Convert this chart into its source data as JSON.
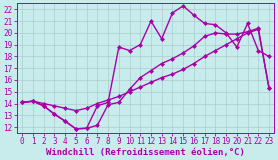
{
  "xlabel": "Windchill (Refroidissement éolien,°C)",
  "bg_color": "#c8ecec",
  "grid_color": "#aacccc",
  "line_color": "#aa00aa",
  "xlim": [
    -0.5,
    23.5
  ],
  "ylim": [
    11.5,
    22.5
  ],
  "xticks": [
    0,
    1,
    2,
    3,
    4,
    5,
    6,
    7,
    8,
    9,
    10,
    11,
    12,
    13,
    14,
    15,
    16,
    17,
    18,
    19,
    20,
    21,
    22,
    23
  ],
  "yticks": [
    12,
    13,
    14,
    15,
    16,
    17,
    18,
    19,
    20,
    21,
    22
  ],
  "line1_x": [
    0,
    1,
    2,
    3,
    4,
    5,
    6,
    7,
    8,
    9,
    10,
    11,
    12,
    13,
    14,
    15,
    16,
    17,
    18,
    19,
    20,
    21,
    22,
    23
  ],
  "line1_y": [
    14.1,
    14.2,
    13.8,
    13.1,
    12.5,
    11.85,
    11.9,
    13.8,
    14.1,
    18.8,
    18.5,
    19.0,
    21.0,
    19.5,
    21.7,
    22.3,
    21.5,
    20.8,
    20.7,
    20.0,
    18.8,
    20.8,
    18.5,
    18.0
  ],
  "line2_x": [
    0,
    1,
    2,
    3,
    4,
    5,
    6,
    7,
    8,
    9,
    10,
    11,
    12,
    13,
    14,
    15,
    16,
    17,
    18,
    19,
    20,
    21,
    22,
    23
  ],
  "line2_y": [
    14.1,
    14.2,
    14.0,
    13.8,
    13.6,
    13.4,
    13.6,
    14.0,
    14.3,
    14.6,
    15.0,
    15.4,
    15.8,
    16.2,
    16.5,
    16.9,
    17.4,
    18.0,
    18.5,
    19.0,
    19.5,
    20.0,
    20.3,
    15.3
  ],
  "line3_x": [
    0,
    1,
    2,
    3,
    4,
    5,
    6,
    7,
    8,
    9,
    10,
    11,
    12,
    13,
    14,
    15,
    16,
    17,
    18,
    19,
    20,
    21,
    22,
    23
  ],
  "line3_y": [
    14.1,
    14.2,
    13.8,
    13.1,
    12.5,
    11.85,
    11.9,
    12.15,
    13.9,
    14.1,
    15.2,
    16.2,
    16.8,
    17.4,
    17.8,
    18.3,
    18.9,
    19.7,
    20.0,
    19.9,
    19.9,
    20.1,
    20.4,
    15.3
  ],
  "marker": "D",
  "markersize": 2.5,
  "linewidth": 1.0,
  "xlabel_fontsize": 6.5,
  "tick_fontsize": 5.5
}
